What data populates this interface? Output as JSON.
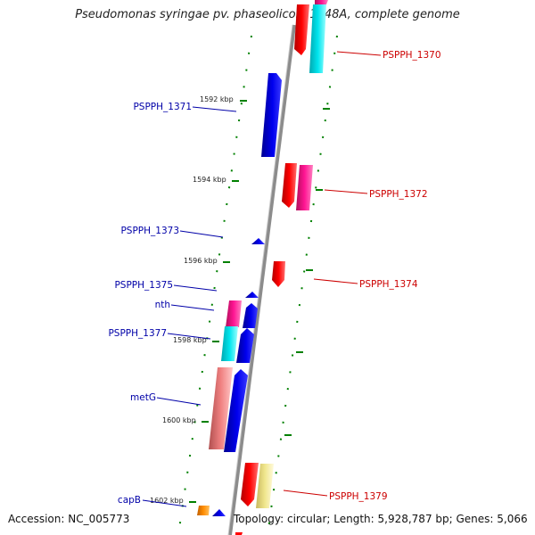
{
  "title": "Pseudomonas syringae pv. phaseolicola 1448A, complete genome",
  "footer": {
    "accession": "Accession: NC_005773",
    "topology": "Topology: circular; Length: 5,928,787 bp; Genes: 5,066"
  },
  "scale_labels": [
    "1592 kbp",
    "1594 kbp",
    "1596 kbp",
    "1598 kbp",
    "1600 kbp",
    "1602 kbp"
  ],
  "gene_labels": {
    "right": [
      "PSPPH_1370",
      "PSPPH_1372",
      "PSPPH_1374",
      "PSPPH_1379"
    ],
    "left": [
      "PSPPH_1371",
      "PSPPH_1373",
      "PSPPH_1375",
      "nth",
      "PSPPH_1377",
      "metG",
      "capB"
    ]
  },
  "colors": {
    "forward_strand": "#ff0000",
    "reverse_strand": "#0000ee",
    "magenta": "#ff1493",
    "cyan": "#00e5ee",
    "pink": "#f08080",
    "pale_yellow": "#f0e68c",
    "orange": "#ff8c00",
    "backbone": "#8c8c8c",
    "tick": "#008000"
  }
}
